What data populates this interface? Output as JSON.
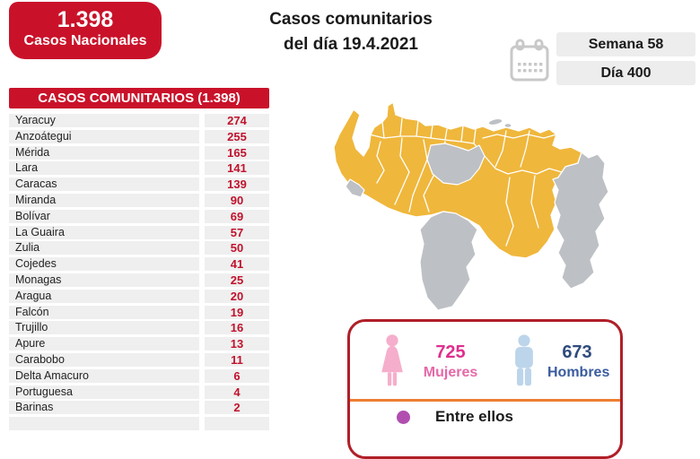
{
  "header": {
    "national_badge": {
      "value": "1.398",
      "label": "Casos Nacionales"
    },
    "title": {
      "line1": "Casos comunitarios",
      "line2": "del día 19.4.2021"
    },
    "week_pill": "Semana 58",
    "day_pill": "Día 400"
  },
  "table": {
    "title": "CASOS COMUNITARIOS (1.398)",
    "rows": [
      {
        "state": "Yaracuy",
        "cases": "274"
      },
      {
        "state": "Anzoátegui",
        "cases": "255"
      },
      {
        "state": "Mérida",
        "cases": "165"
      },
      {
        "state": "Lara",
        "cases": "141"
      },
      {
        "state": "Caracas",
        "cases": "139"
      },
      {
        "state": "Miranda",
        "cases": "90"
      },
      {
        "state": "Bolívar",
        "cases": "69"
      },
      {
        "state": "La Guaira",
        "cases": "57"
      },
      {
        "state": "Zulia",
        "cases": "50"
      },
      {
        "state": "Cojedes",
        "cases": "41"
      },
      {
        "state": "Monagas",
        "cases": "25"
      },
      {
        "state": "Aragua",
        "cases": "20"
      },
      {
        "state": "Falcón",
        "cases": "19"
      },
      {
        "state": "Trujillo",
        "cases": "16"
      },
      {
        "state": "Apure",
        "cases": "13"
      },
      {
        "state": "Carabobo",
        "cases": "11"
      },
      {
        "state": "Delta Amacuro",
        "cases": "6"
      },
      {
        "state": "Portuguesa",
        "cases": "4"
      },
      {
        "state": "Barinas",
        "cases": "2"
      }
    ]
  },
  "chart_data": {
    "type": "table",
    "title": "CASOS COMUNITARIOS (1.398)",
    "categories": [
      "Yaracuy",
      "Anzoátegui",
      "Mérida",
      "Lara",
      "Caracas",
      "Miranda",
      "Bolívar",
      "La Guaira",
      "Zulia",
      "Cojedes",
      "Monagas",
      "Aragua",
      "Falcón",
      "Trujillo",
      "Apure",
      "Carabobo",
      "Delta Amacuro",
      "Portuguesa",
      "Barinas"
    ],
    "values": [
      274,
      255,
      165,
      141,
      139,
      90,
      69,
      57,
      50,
      41,
      25,
      20,
      19,
      16,
      13,
      11,
      6,
      4,
      2
    ],
    "national_total": "1.398",
    "date": "19.4.2021",
    "week": 58,
    "day": 400,
    "women": 725,
    "men": 673
  },
  "map": {
    "region": "Venezuela",
    "active_color": "#EFB73C",
    "inactive_color": "#BDC0C4"
  },
  "gender_panel": {
    "women": {
      "value": "725",
      "label": "Mujeres"
    },
    "men": {
      "value": "673",
      "label": "Hombres"
    },
    "footer": "Entre ellos"
  },
  "colors": {
    "red": "#C9122A",
    "value_red": "#C0122C",
    "card_border": "#B01F28",
    "divider_orange": "#ED7D31",
    "pink_number": "#DF2F8C",
    "blue_number": "#2F4B7C",
    "purple_bullet": "#B04FB0",
    "row_bg": "#EFEFEF",
    "pill_bg": "#EDEDED"
  }
}
